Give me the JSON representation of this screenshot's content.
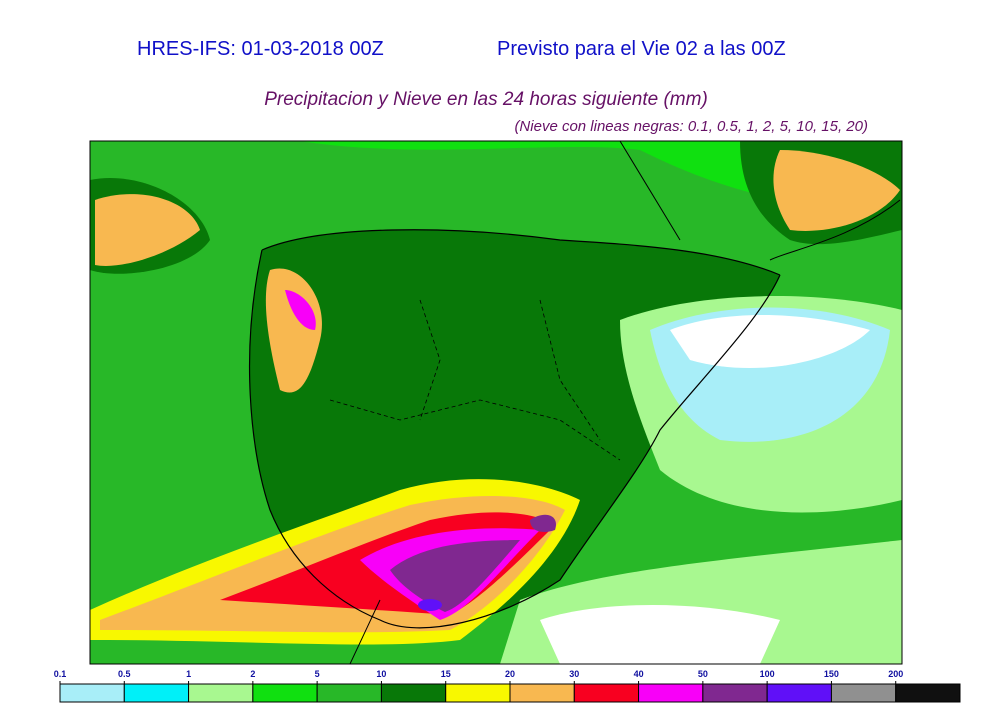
{
  "header": {
    "model": "HRES-IFS: 01-03-2018 00Z",
    "valid": "Previsto para el  Vie 02 a las 00Z"
  },
  "title": "Precipitacion y Nieve en las 24 horas siguiente (mm)",
  "note": "(Nieve con lineas negras: 0.1, 0.5, 1, 2, 5, 10, 15, 20)",
  "legend": {
    "levels": [
      0.1,
      0.5,
      1,
      2,
      5,
      10,
      15,
      20,
      30,
      40,
      50,
      100,
      150,
      200
    ],
    "colors": [
      "#a8eef8",
      "#00f0f8",
      "#a8f890",
      "#10e010",
      "#28b828",
      "#087808",
      "#f8f800",
      "#f8b850",
      "#f80020",
      "#f800f8",
      "#802890",
      "#6010f8",
      "#909090",
      "#101010"
    ]
  }
}
